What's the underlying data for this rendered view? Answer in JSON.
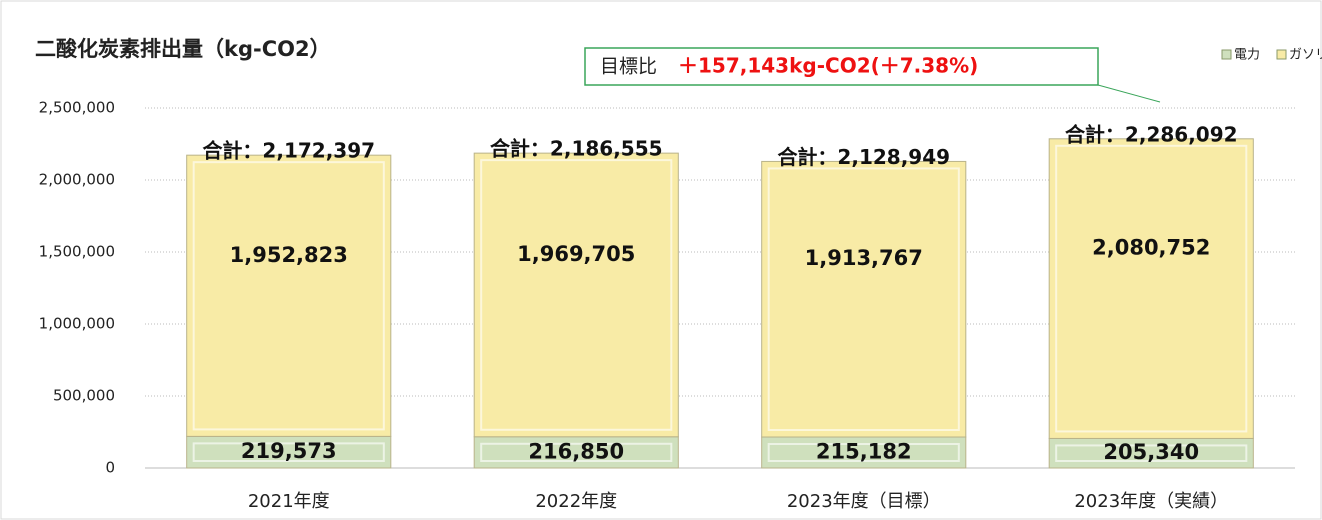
{
  "chart_data": {
    "type": "stacked_bar",
    "title": "二酸化炭素排出量（kg-CO2）",
    "categories": [
      "2021年度",
      "2022年度",
      "2023年度（目標）",
      "2023年度（実績）"
    ],
    "series": [
      {
        "name": "電力",
        "color": "#cfe0bd",
        "values": [
          219573,
          216850,
          215182,
          205340
        ],
        "value_labels": [
          "219,573",
          "216,850",
          "215,182",
          "205,340"
        ]
      },
      {
        "name": "ガソリン",
        "color": "#f8eba6",
        "values": [
          1952823,
          1969705,
          1913767,
          2080752
        ],
        "value_labels": [
          "1,952,823",
          "1,969,705",
          "1,913,767",
          "2,080,752"
        ]
      }
    ],
    "total_labels": [
      "合計：2,172,397",
      "合計：2,186,555",
      "合計：2,128,949",
      "合計：2,286,092"
    ],
    "annotation": {
      "prefix": "目標比",
      "text": "＋157,143kg-CO2(＋7.38%)"
    },
    "ylim": [
      0,
      2500000
    ],
    "yticks": [
      0,
      {
        "value": 500000,
        "label": "500,000"
      },
      {
        "value": 1000000,
        "label": "1,000,000"
      },
      {
        "value": 1500000,
        "label": "1,500,000"
      },
      {
        "value": 2000000,
        "label": "2,000,000"
      },
      {
        "value": 2500000,
        "label": "2,500,000"
      }
    ],
    "grid": true,
    "legend": "top-right"
  }
}
